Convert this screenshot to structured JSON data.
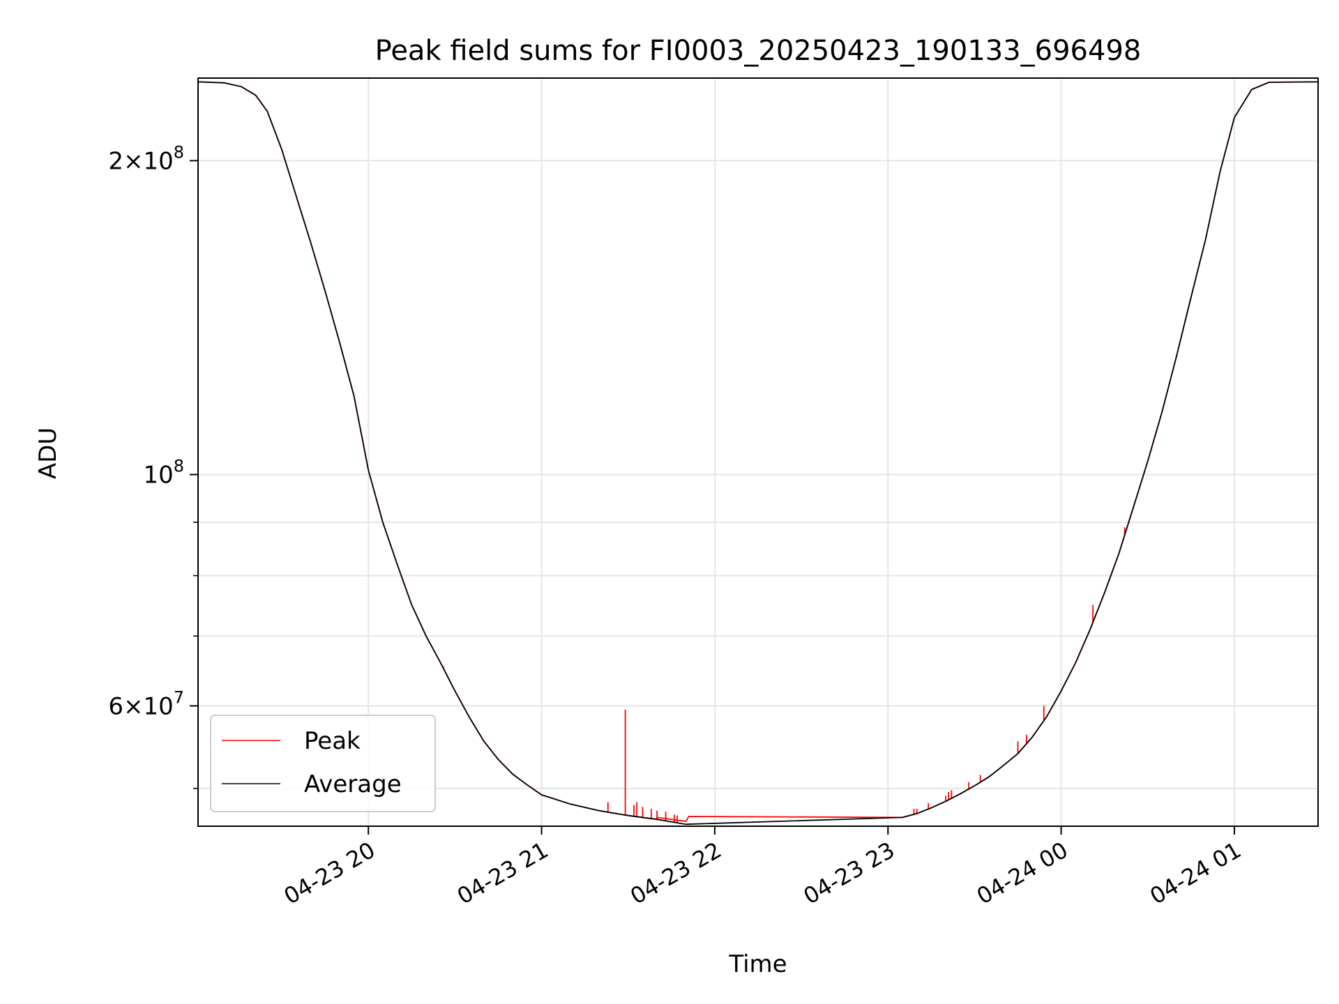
{
  "chart_data": {
    "type": "line",
    "title": "Peak field sums for FI0003_20250423_190133_696498",
    "xlabel": "Time",
    "ylabel": "ADU",
    "x_axis": {
      "ticks": [
        "04-23 20",
        "04-23 21",
        "04-23 22",
        "04-23 23",
        "04-24 00",
        "04-24 01"
      ],
      "range": [
        "2025-04-23 19:01",
        "2025-04-24 01:29"
      ]
    },
    "y_axis": {
      "scale": "log",
      "range": [
        46000000,
        240000000
      ],
      "major_ticks": [
        {
          "value": 200000000,
          "mant": "2",
          "exp": "8"
        },
        {
          "value": 100000000,
          "mant": "",
          "exp": "8"
        },
        {
          "value": 60000000,
          "mant": "6",
          "exp": "7"
        }
      ],
      "minor_ticks": [
        50000000,
        70000000,
        80000000,
        90000000
      ]
    },
    "grid": true,
    "legend": {
      "placement": "lower-left",
      "entries": [
        "Peak",
        "Average"
      ]
    },
    "series": [
      {
        "name": "Average",
        "color": "#000000",
        "points": [
          [
            "2025-04-23 19:01",
            238000000
          ],
          [
            "2025-04-23 19:10",
            237500000
          ],
          [
            "2025-04-23 19:16",
            235500000
          ],
          [
            "2025-04-23 19:21",
            231000000
          ],
          [
            "2025-04-23 19:25",
            223000000
          ],
          [
            "2025-04-23 19:30",
            205000000
          ],
          [
            "2025-04-23 19:35",
            185000000
          ],
          [
            "2025-04-23 19:40",
            167000000
          ],
          [
            "2025-04-23 19:45",
            150000000
          ],
          [
            "2025-04-23 19:50",
            134000000
          ],
          [
            "2025-04-23 19:55",
            119000000
          ],
          [
            "2025-04-23 20:00",
            101000000
          ],
          [
            "2025-04-23 20:05",
            90000000
          ],
          [
            "2025-04-23 20:10",
            82000000
          ],
          [
            "2025-04-23 20:15",
            75000000
          ],
          [
            "2025-04-23 20:20",
            70000000
          ],
          [
            "2025-04-23 20:25",
            66000000
          ],
          [
            "2025-04-23 20:30",
            62000000
          ],
          [
            "2025-04-23 20:35",
            58500000
          ],
          [
            "2025-04-23 20:40",
            55500000
          ],
          [
            "2025-04-23 20:45",
            53300000
          ],
          [
            "2025-04-23 20:50",
            51600000
          ],
          [
            "2025-04-23 20:55",
            50400000
          ],
          [
            "2025-04-23 21:00",
            49300000
          ],
          [
            "2025-04-23 21:10",
            48300000
          ],
          [
            "2025-04-23 21:20",
            47600000
          ],
          [
            "2025-04-23 21:30",
            47100000
          ],
          [
            "2025-04-23 21:40",
            46700000
          ],
          [
            "2025-04-23 21:50",
            46200000
          ],
          [
            "2025-04-23 23:05",
            46900000
          ],
          [
            "2025-04-23 23:10",
            47300000
          ],
          [
            "2025-04-23 23:15",
            47900000
          ],
          [
            "2025-04-23 23:20",
            48600000
          ],
          [
            "2025-04-23 23:25",
            49400000
          ],
          [
            "2025-04-23 23:30",
            50300000
          ],
          [
            "2025-04-23 23:35",
            51300000
          ],
          [
            "2025-04-23 23:40",
            52600000
          ],
          [
            "2025-04-23 23:45",
            54000000
          ],
          [
            "2025-04-23 23:50",
            56000000
          ],
          [
            "2025-04-23 23:55",
            58600000
          ],
          [
            "2025-04-24 00:00",
            62000000
          ],
          [
            "2025-04-24 00:05",
            66000000
          ],
          [
            "2025-04-24 00:10",
            71000000
          ],
          [
            "2025-04-24 00:15",
            77000000
          ],
          [
            "2025-04-24 00:20",
            84000000
          ],
          [
            "2025-04-24 00:25",
            93000000
          ],
          [
            "2025-04-24 00:30",
            103000000
          ],
          [
            "2025-04-24 00:35",
            115000000
          ],
          [
            "2025-04-24 00:40",
            130000000
          ],
          [
            "2025-04-24 00:45",
            148000000
          ],
          [
            "2025-04-24 00:50",
            168000000
          ],
          [
            "2025-04-24 00:55",
            195000000
          ],
          [
            "2025-04-24 01:00",
            220000000
          ],
          [
            "2025-04-24 01:06",
            234000000
          ],
          [
            "2025-04-24 01:12",
            237800000
          ],
          [
            "2025-04-24 01:29",
            238000000
          ]
        ]
      },
      {
        "name": "Peak",
        "color": "#ff0000",
        "points": [
          [
            "2025-04-23 21:40",
            46900000
          ],
          [
            "2025-04-23 21:50",
            46500000
          ],
          [
            "2025-04-23 21:51",
            47000000
          ],
          [
            "2025-04-23 23:05",
            46900000
          ]
        ],
        "spikes": [
          [
            "2025-04-23 20:26",
            65500000
          ],
          [
            "2025-04-23 21:23",
            48500000
          ],
          [
            "2025-04-23 21:29",
            59500000
          ],
          [
            "2025-04-23 21:32",
            48200000
          ],
          [
            "2025-04-23 21:33",
            48500000
          ],
          [
            "2025-04-23 21:35",
            48000000
          ],
          [
            "2025-04-23 21:38",
            47800000
          ],
          [
            "2025-04-23 21:40",
            47600000
          ],
          [
            "2025-04-23 21:43",
            47500000
          ],
          [
            "2025-04-23 21:46",
            47200000
          ],
          [
            "2025-04-23 21:47",
            47100000
          ],
          [
            "2025-04-23 23:09",
            47800000
          ],
          [
            "2025-04-23 23:10",
            47800000
          ],
          [
            "2025-04-23 23:14",
            48400000
          ],
          [
            "2025-04-23 23:20",
            49200000
          ],
          [
            "2025-04-23 23:21",
            49600000
          ],
          [
            "2025-04-23 23:22",
            49800000
          ],
          [
            "2025-04-23 23:28",
            50700000
          ],
          [
            "2025-04-23 23:32",
            51500000
          ],
          [
            "2025-04-23 23:45",
            55500000
          ],
          [
            "2025-04-23 23:48",
            56300000
          ],
          [
            "2025-04-23 23:54",
            60000000
          ],
          [
            "2025-04-24 00:11",
            75000000
          ],
          [
            "2025-04-24 00:22",
            89000000
          ]
        ]
      }
    ]
  }
}
